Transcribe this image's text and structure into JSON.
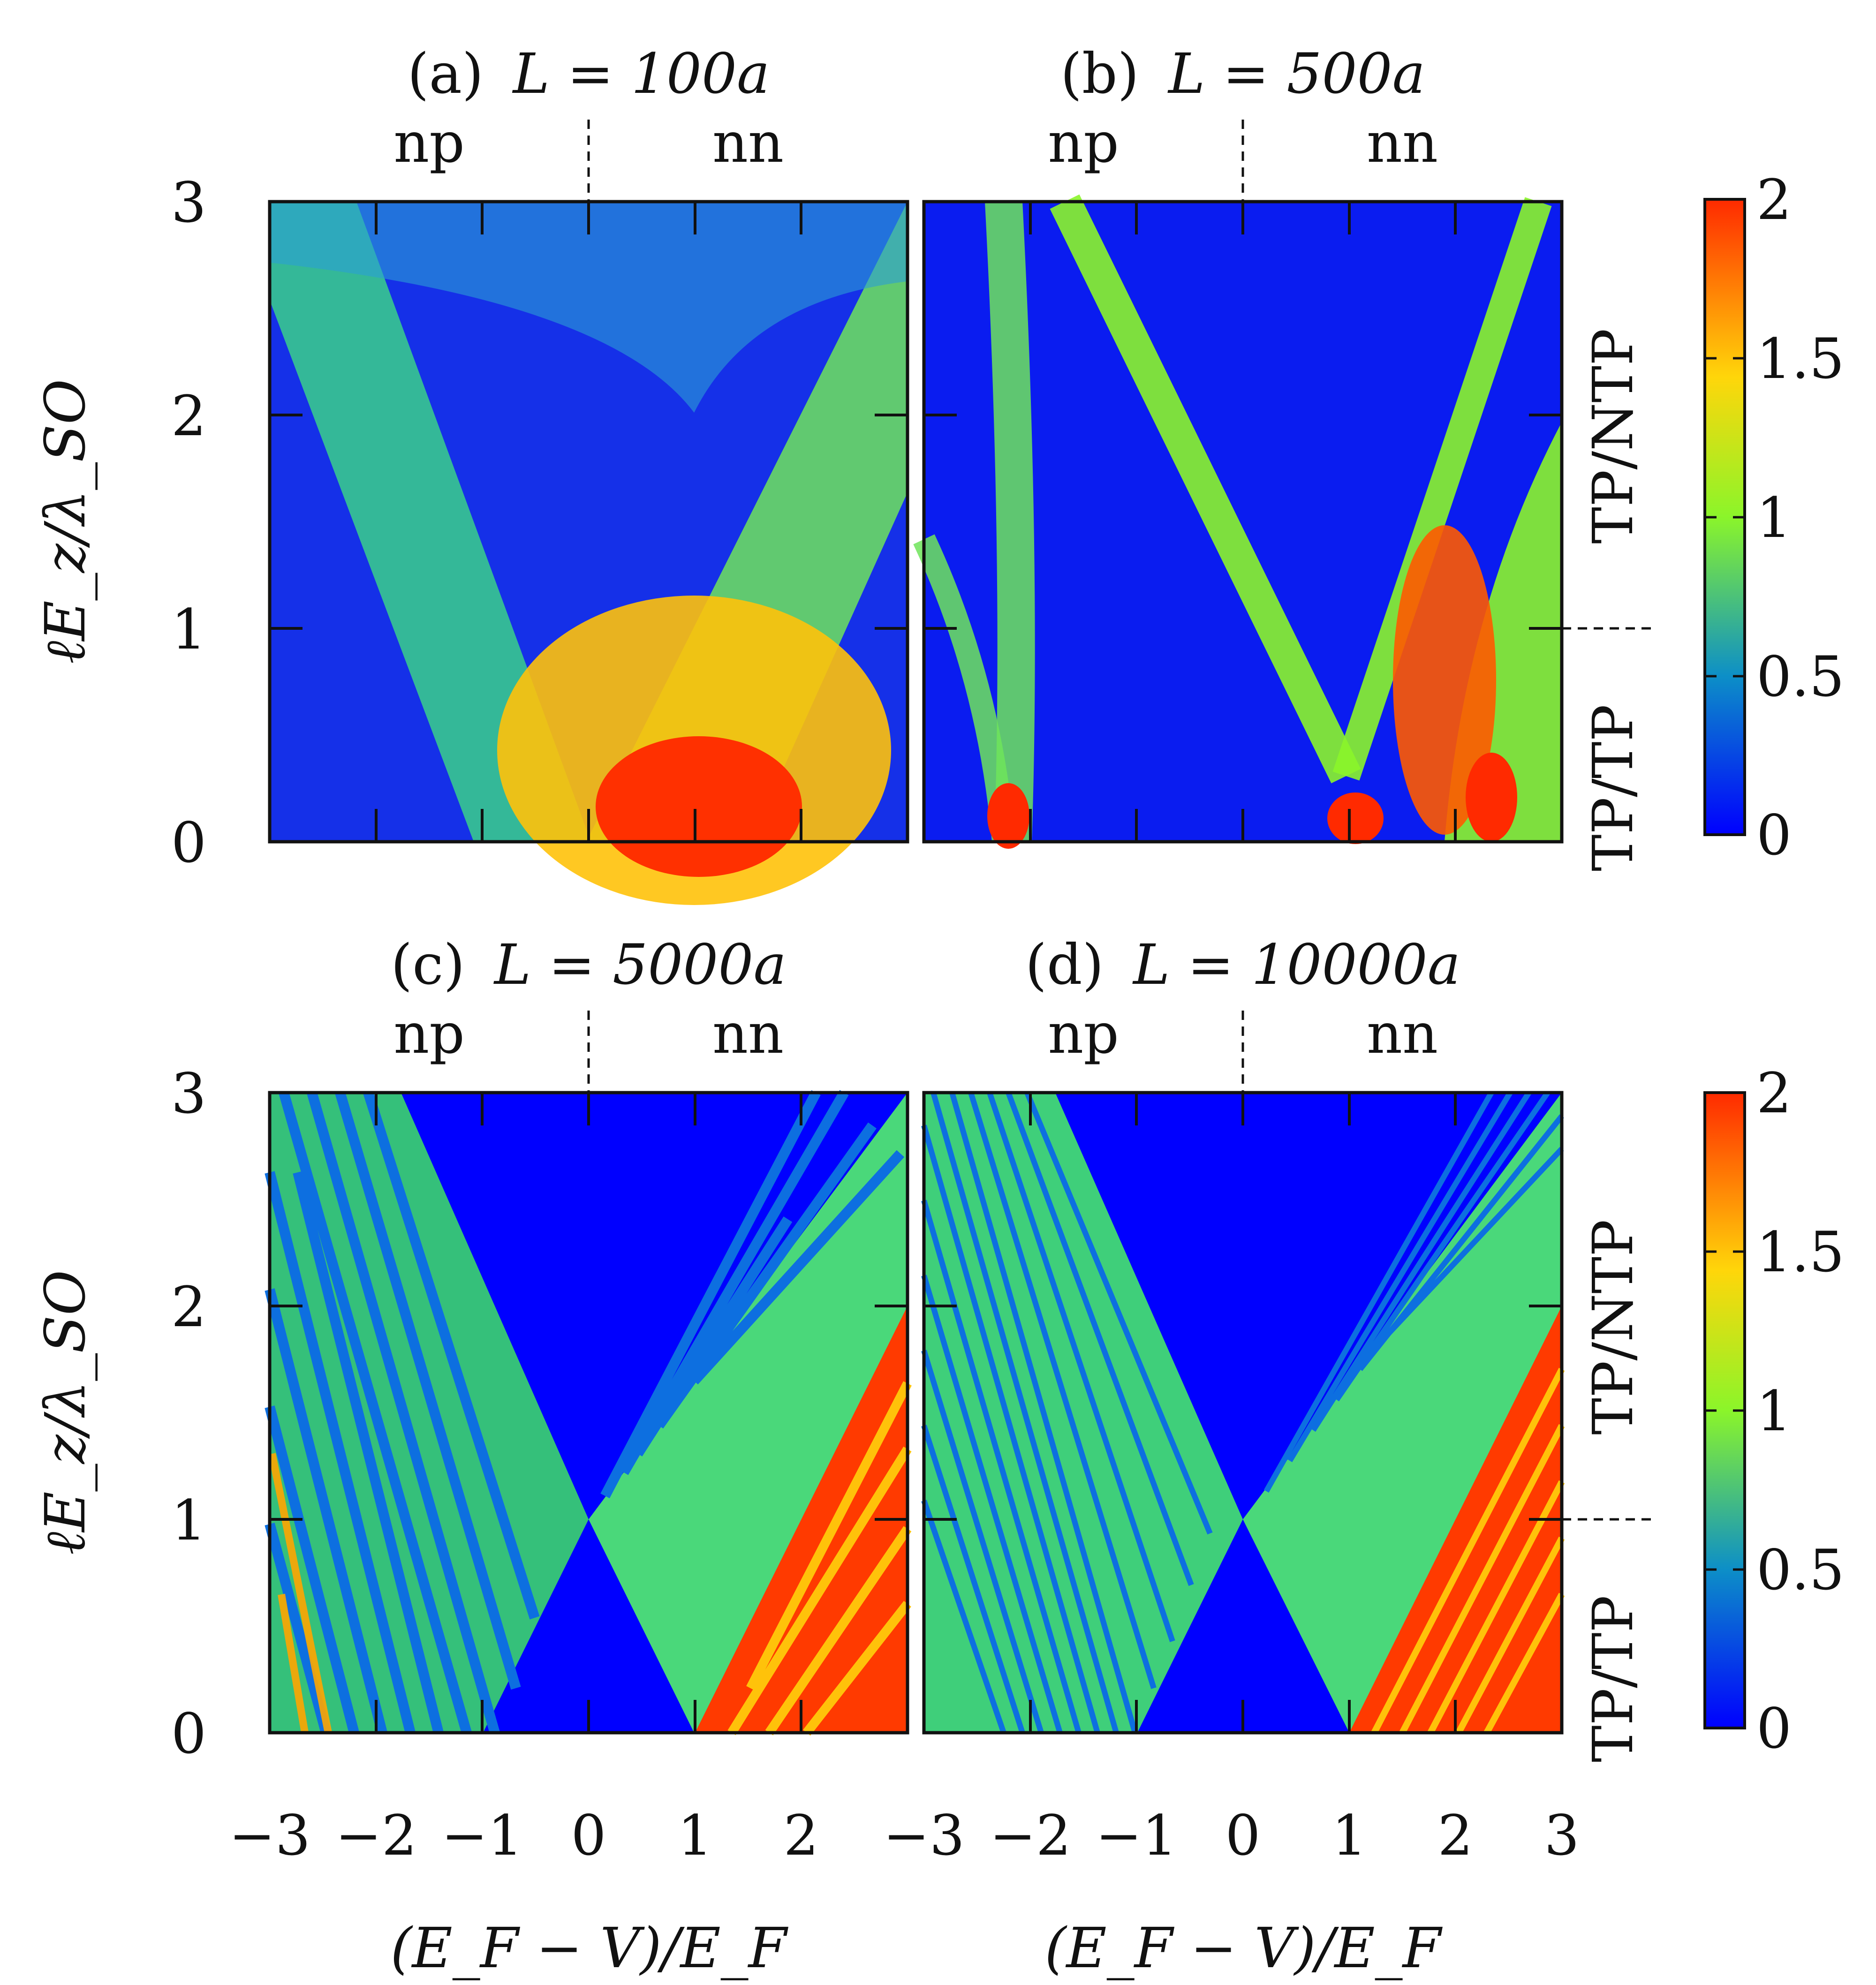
{
  "figure": {
    "colorbar": {
      "min": 0,
      "max": 2,
      "ticks": [
        "0",
        "0.5",
        "1",
        "1.5",
        "2"
      ]
    },
    "x_ticks": [
      "−3",
      "−2",
      "−1",
      "0",
      "1",
      "2",
      "3"
    ],
    "x_ticks_last_panel": [
      "−3",
      "−2",
      "−1",
      "0",
      "1",
      "2",
      "3"
    ],
    "y_ticks": [
      "0",
      "1",
      "2",
      "3"
    ],
    "region_left": "np",
    "region_right": "nn",
    "phase_upper": "TP/NTP",
    "phase_lower": "TP/TP",
    "colors": {
      "np": "#ff1a1a",
      "nn": "#1a1aff",
      "tp_ntp": "#ff1a1a",
      "tp_tp": "#1a1aff"
    }
  },
  "chart_data": [
    {
      "type": "heatmap",
      "panel": "(a)",
      "title_prefix": "(a)",
      "title_math": "L = 100a",
      "xlabel": "(E_F − V)/E_F",
      "ylabel": "ℓE_z/λ_SO",
      "xlim": [
        -3,
        3
      ],
      "ylim": [
        0,
        3
      ],
      "value_range": [
        0,
        2
      ],
      "features": "smooth broad V-shaped bands; maximum (~2) near x=1, y=0"
    },
    {
      "type": "heatmap",
      "panel": "(b)",
      "title_prefix": "(b)",
      "title_math": "L = 500a",
      "xlabel": "(E_F − V)/E_F",
      "ylabel": "ℓE_z/λ_SO",
      "xlim": [
        -3,
        3
      ],
      "ylim": [
        0,
        3
      ],
      "value_range": [
        0,
        2
      ],
      "features": "narrow V-shaped bright bands meeting near x=1, y=0.3; red patches near x=2, y≈1"
    },
    {
      "type": "heatmap",
      "panel": "(c)",
      "title_prefix": "(c)",
      "title_math": "L = 5000a",
      "xlabel": "(E_F − V)/E_F",
      "ylabel": "ℓE_z/λ_SO",
      "xlim": [
        -3,
        3
      ],
      "ylim": [
        0,
        3
      ],
      "value_range": [
        0,
        2
      ],
      "features": "X-shaped gap crossing at x=0, y=1; fringe oscillations; red region below line from (1,0) to (3,2)"
    },
    {
      "type": "heatmap",
      "panel": "(d)",
      "title_prefix": "(d)",
      "title_math": "L = 10000a",
      "xlabel": "(E_F − V)/E_F",
      "ylabel": "ℓE_z/λ_SO",
      "xlim": [
        -3,
        3
      ],
      "ylim": [
        0,
        3
      ],
      "value_range": [
        0,
        2
      ],
      "features": "denser fringes than (c); same X-shaped gap structure"
    }
  ]
}
